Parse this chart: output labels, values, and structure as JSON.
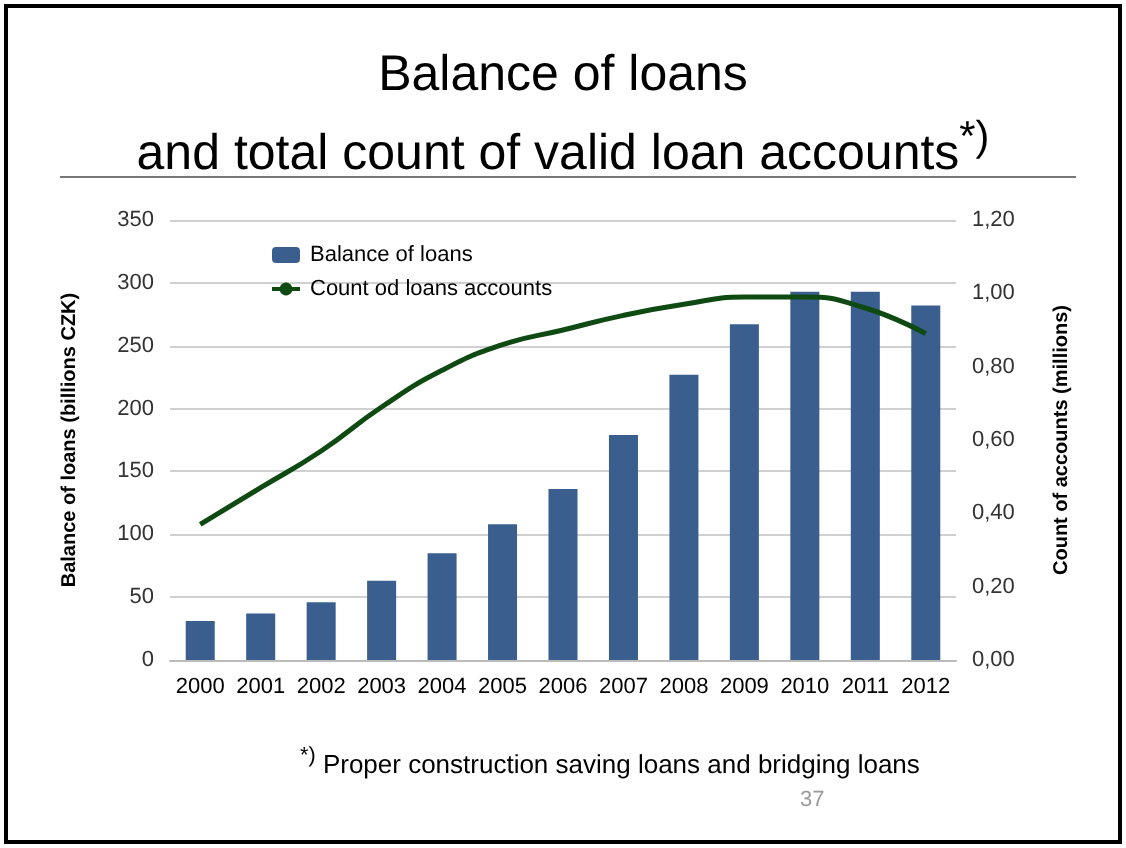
{
  "chart_data": {
    "type": "bar",
    "title": "Balance of loans",
    "subtitle": "and total count of valid loan accounts$^{*)}$",
    "ylabel": "Balance of loans (billions CZK)",
    "y2label": "Count of accounts (millions)",
    "categories": [
      "2000",
      "2001",
      "2002",
      "2003",
      "2004",
      "2005",
      "2006",
      "2007",
      "2008",
      "2009",
      "2010",
      "2011",
      "2012"
    ],
    "series": [
      {
        "name": "Balance of loans",
        "color": "#3a5f8f",
        "values": [
          31,
          37,
          46,
          63,
          85,
          108,
          136,
          179,
          227,
          267,
          293,
          293,
          282
        ]
      },
      {
        "name": "Count od loans accounts",
        "type": "line",
        "axis": "y2",
        "color": "#0f4a12",
        "marker": "none",
        "line_style": "solid",
        "values": [
          0.37,
          0.47,
          0.57,
          0.69,
          0.79,
          0.86,
          0.9,
          0.94,
          0.97,
          0.99,
          0.99,
          0.96,
          0.89
        ]
      }
    ],
    "ylim": [
      0,
      350
    ],
    "yticks": [
      0,
      50,
      100,
      150,
      200,
      250,
      300,
      350
    ],
    "y2lim": [
      0,
      1.2
    ],
    "y2ticks": [
      {
        "value": 0,
        "label": "0,00"
      },
      {
        "value": 0.2,
        "label": "0,20"
      },
      {
        "value": 0.4,
        "label": "0,40"
      },
      {
        "value": 0.6,
        "label": "0,60"
      },
      {
        "value": 0.8,
        "label": "0,80"
      },
      {
        "value": 1,
        "label": "1,00"
      },
      {
        "value": 1.2,
        "label": "1,20"
      }
    ],
    "grid": "y",
    "legend": "top left",
    "annotations": [
      "$^{*)}$ Proper construction saving loans and bridging loans",
      "37"
    ]
  }
}
